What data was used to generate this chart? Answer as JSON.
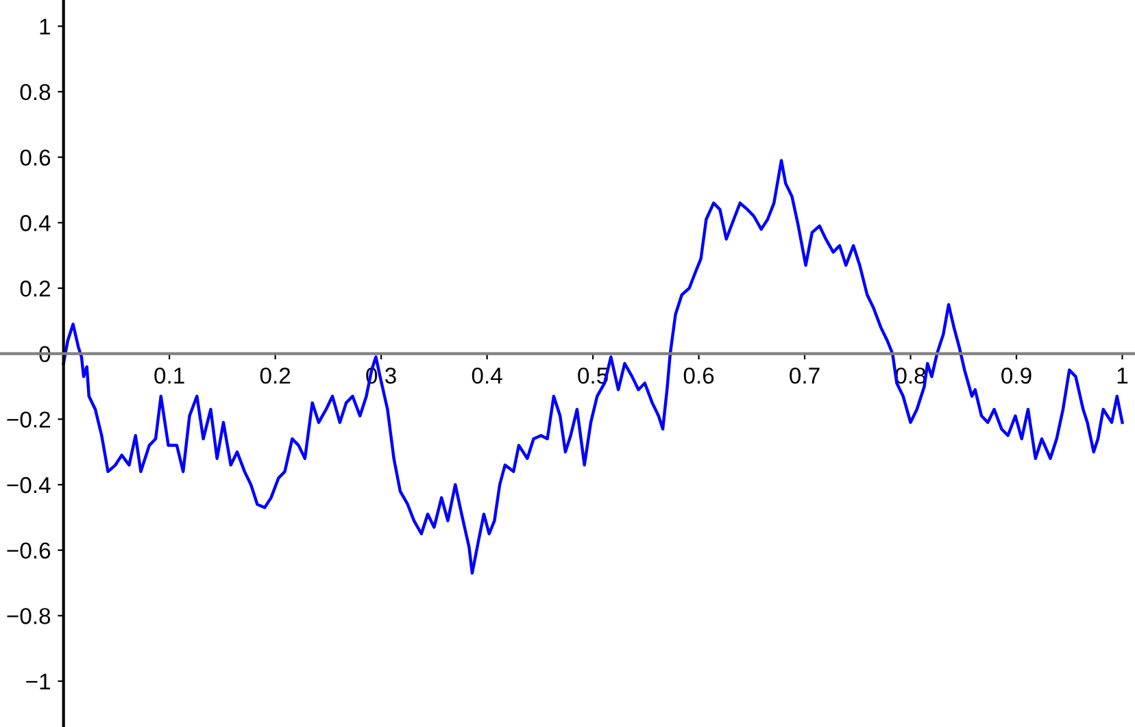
{
  "chart_data": {
    "type": "line",
    "xlim": [
      -0.06,
      1.012
    ],
    "ylim": [
      -1.14,
      1.08
    ],
    "xticks": [
      0.1,
      0.2,
      0.3,
      0.4,
      0.5,
      0.6,
      0.7,
      0.8,
      0.9,
      1
    ],
    "yticks": [
      {
        "value": -1,
        "label": "−1"
      },
      {
        "value": -0.8,
        "label": "−0.8"
      },
      {
        "value": -0.6,
        "label": "−0.6"
      },
      {
        "value": -0.4,
        "label": "−0.4"
      },
      {
        "value": -0.2,
        "label": "−0.2"
      },
      0,
      0.2,
      0.4,
      0.6,
      0.8,
      1
    ],
    "grid": false,
    "marker": "none",
    "line_style": "solid",
    "series": [
      {
        "color": "#0000ff",
        "x": [
          0,
          0.004,
          0.009,
          0.014,
          0.017,
          0.019,
          0.022,
          0.024,
          0.03,
          0.036,
          0.042,
          0.049,
          0.055,
          0.062,
          0.068,
          0.073,
          0.081,
          0.087,
          0.092,
          0.099,
          0.107,
          0.113,
          0.119,
          0.126,
          0.132,
          0.139,
          0.145,
          0.151,
          0.158,
          0.164,
          0.171,
          0.177,
          0.183,
          0.19,
          0.196,
          0.203,
          0.209,
          0.216,
          0.222,
          0.228,
          0.235,
          0.241,
          0.248,
          0.254,
          0.261,
          0.267,
          0.273,
          0.28,
          0.286,
          0.291,
          0.295,
          0.299,
          0.306,
          0.312,
          0.318,
          0.325,
          0.331,
          0.338,
          0.344,
          0.35,
          0.357,
          0.363,
          0.37,
          0.376,
          0.383,
          0.386,
          0.392,
          0.397,
          0.402,
          0.407,
          0.412,
          0.417,
          0.425,
          0.43,
          0.438,
          0.444,
          0.451,
          0.457,
          0.463,
          0.469,
          0.474,
          0.479,
          0.485,
          0.492,
          0.498,
          0.504,
          0.511,
          0.517,
          0.524,
          0.53,
          0.537,
          0.543,
          0.549,
          0.556,
          0.562,
          0.566,
          0.57,
          0.573,
          0.578,
          0.584,
          0.591,
          0.597,
          0.602,
          0.607,
          0.614,
          0.62,
          0.626,
          0.633,
          0.639,
          0.646,
          0.652,
          0.659,
          0.665,
          0.671,
          0.678,
          0.682,
          0.688,
          0.694,
          0.701,
          0.707,
          0.714,
          0.72,
          0.727,
          0.733,
          0.739,
          0.746,
          0.752,
          0.759,
          0.765,
          0.772,
          0.778,
          0.783,
          0.787,
          0.793,
          0.8,
          0.806,
          0.813,
          0.816,
          0.82,
          0.825,
          0.831,
          0.836,
          0.841,
          0.846,
          0.851,
          0.858,
          0.861,
          0.867,
          0.873,
          0.879,
          0.886,
          0.892,
          0.899,
          0.905,
          0.911,
          0.918,
          0.924,
          0.932,
          0.938,
          0.944,
          0.95,
          0.956,
          0.963,
          0.967,
          0.973,
          0.977,
          0.982,
          0.99,
          0.995,
          1.0
        ],
        "values": [
          -0.03,
          0.04,
          0.09,
          0.02,
          -0.01,
          -0.07,
          -0.04,
          -0.13,
          -0.17,
          -0.25,
          -0.36,
          -0.34,
          -0.31,
          -0.34,
          -0.25,
          -0.36,
          -0.28,
          -0.26,
          -0.13,
          -0.28,
          -0.28,
          -0.36,
          -0.19,
          -0.13,
          -0.26,
          -0.17,
          -0.32,
          -0.21,
          -0.34,
          -0.3,
          -0.36,
          -0.4,
          -0.46,
          -0.47,
          -0.44,
          -0.38,
          -0.36,
          -0.26,
          -0.28,
          -0.32,
          -0.15,
          -0.21,
          -0.17,
          -0.13,
          -0.21,
          -0.15,
          -0.13,
          -0.19,
          -0.13,
          -0.05,
          -0.01,
          -0.07,
          -0.17,
          -0.32,
          -0.42,
          -0.46,
          -0.51,
          -0.55,
          -0.49,
          -0.53,
          -0.44,
          -0.51,
          -0.4,
          -0.49,
          -0.59,
          -0.67,
          -0.57,
          -0.49,
          -0.55,
          -0.51,
          -0.4,
          -0.34,
          -0.36,
          -0.28,
          -0.32,
          -0.26,
          -0.25,
          -0.26,
          -0.13,
          -0.19,
          -0.3,
          -0.25,
          -0.17,
          -0.34,
          -0.21,
          -0.13,
          -0.09,
          -0.01,
          -0.11,
          -0.03,
          -0.07,
          -0.11,
          -0.09,
          -0.15,
          -0.19,
          -0.23,
          -0.11,
          0.0,
          0.12,
          0.18,
          0.2,
          0.25,
          0.29,
          0.41,
          0.46,
          0.44,
          0.35,
          0.41,
          0.46,
          0.44,
          0.42,
          0.38,
          0.41,
          0.46,
          0.59,
          0.52,
          0.48,
          0.39,
          0.27,
          0.37,
          0.39,
          0.35,
          0.31,
          0.33,
          0.27,
          0.33,
          0.27,
          0.18,
          0.14,
          0.08,
          0.04,
          0.0,
          -0.09,
          -0.13,
          -0.21,
          -0.17,
          -0.1,
          -0.03,
          -0.07,
          0.0,
          0.06,
          0.15,
          0.08,
          0.02,
          -0.05,
          -0.13,
          -0.11,
          -0.19,
          -0.21,
          -0.17,
          -0.23,
          -0.25,
          -0.19,
          -0.26,
          -0.17,
          -0.32,
          -0.26,
          -0.32,
          -0.26,
          -0.17,
          -0.05,
          -0.07,
          -0.17,
          -0.21,
          -0.3,
          -0.26,
          -0.17,
          -0.21,
          -0.13,
          -0.21
        ]
      }
    ]
  }
}
